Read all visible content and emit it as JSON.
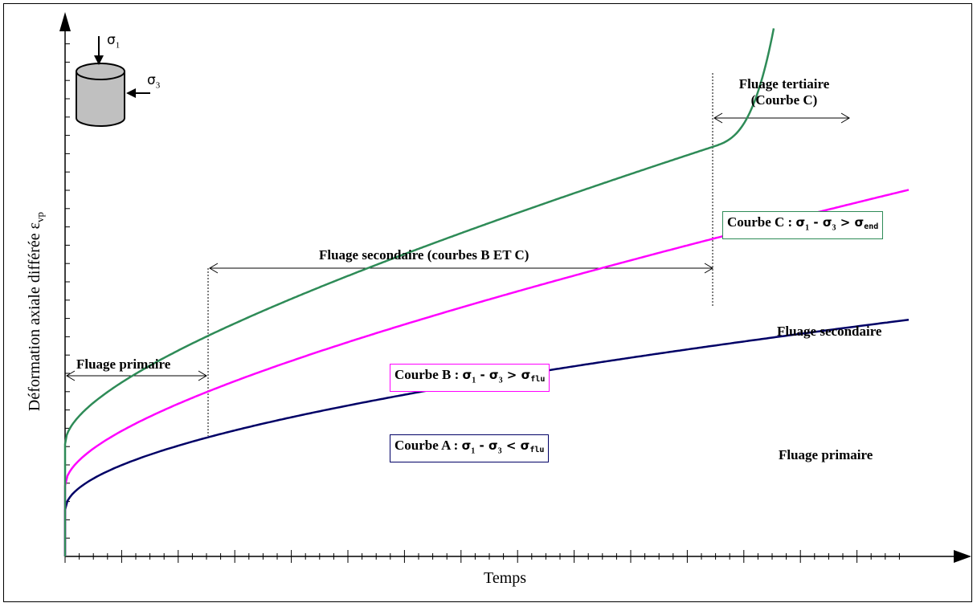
{
  "axes": {
    "x_label": "Temps",
    "y_label_main": "Déformation axiale différée ε",
    "y_label_sub": "vp"
  },
  "sample_icon": {
    "sigma1": "σ",
    "sigma1_sub": "1",
    "sigma3": "σ",
    "sigma3_sub": "3"
  },
  "phases": {
    "primary": "Fluage primaire",
    "secondary": "Fluage secondaire (courbes B ET C)",
    "tertiary_line1": "Fluage tertiaire",
    "tertiary_line2": "(Courbe C)"
  },
  "curve_labels": {
    "a": {
      "prefix": "Courbe A : ",
      "expr_a": "σ",
      "sub1": "1",
      "mid": " - σ",
      "sub3": "3",
      "op": " < σ",
      "limit": "flu"
    },
    "b": {
      "prefix": "Courbe B : ",
      "expr_a": "σ",
      "sub1": "1",
      "mid": " - σ",
      "sub3": "3",
      "op": " > σ",
      "limit": "flu"
    },
    "c": {
      "prefix": "Courbe C : ",
      "expr_a": "σ",
      "sub1": "1",
      "mid": " - σ",
      "sub3": "3",
      "op": " > σ",
      "limit": "end"
    }
  },
  "right_annotations": {
    "secondary": "Fluage secondaire",
    "primary": "Fluage primaire"
  },
  "colors": {
    "curve_a": "#000066",
    "curve_b": "#ff00ff",
    "curve_c": "#2e8b57",
    "axis": "#000000"
  }
}
